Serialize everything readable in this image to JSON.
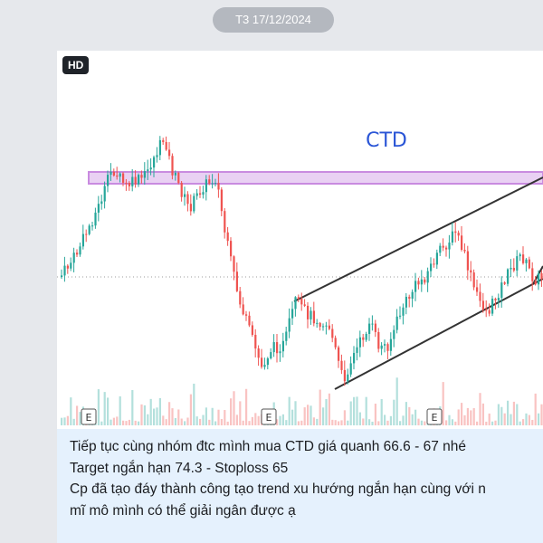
{
  "date_separator": "T3 17/12/2024",
  "image": {
    "hd_badge": "HD",
    "chart_title": "CTD",
    "title_color": "#2a55d6",
    "resistance_zone_color": "#c98be0",
    "earnings_marker": "E",
    "up_color": "#26a69a",
    "down_color": "#ef5350"
  },
  "message": {
    "lines": [
      "Tiếp tục cùng nhóm đtc mình mua CTD giá quanh 66.6 - 67 nhé",
      "Target ngắn hạn 74.3 - Stoploss 65",
      "Cp đã tạo đáy thành công tạo trend xu hướng ngắn hạn cùng với n",
      "mĩ mô mình có thể giải ngân được ạ"
    ]
  }
}
